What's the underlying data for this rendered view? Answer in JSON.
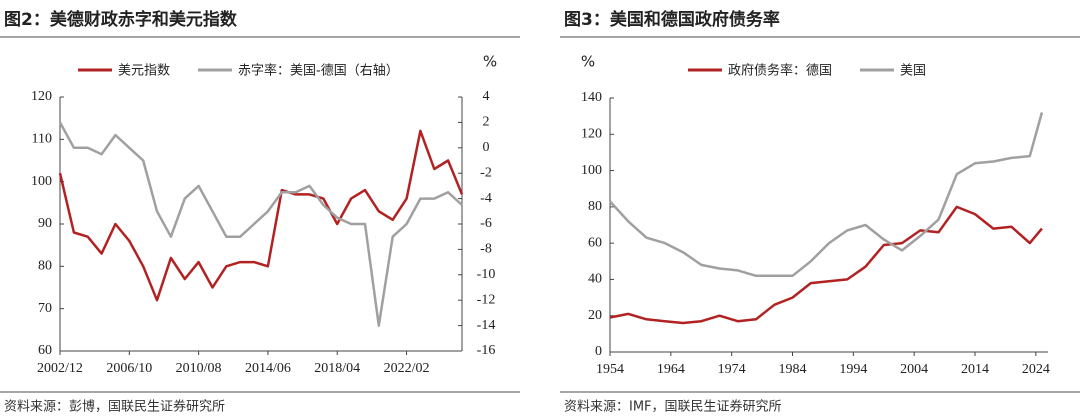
{
  "chart_data": [
    {
      "type": "line",
      "title": "图2：美德财政赤字和美元指数",
      "source": "资料来源：彭博，国联民生证券研究所",
      "y2_label": "%",
      "categories": [
        "2002/12",
        null,
        null,
        null,
        null,
        "2006/10",
        null,
        null,
        null,
        null,
        "2010/08",
        null,
        null,
        null,
        null,
        "2014/06",
        null,
        null,
        null,
        null,
        "2018/04",
        null,
        null,
        null,
        null,
        "2022/02",
        null,
        null,
        null,
        null
      ],
      "series": [
        {
          "name": "美元指数",
          "color": "#b22222",
          "values": [
            102,
            88,
            87,
            83,
            90,
            86,
            80,
            72,
            82,
            77,
            81,
            75,
            80,
            81,
            81,
            80,
            98,
            97,
            97,
            96,
            90,
            96,
            98,
            93,
            91,
            96,
            112,
            103,
            105,
            97
          ]
        },
        {
          "name": "赤字率：美国-德国（右轴）",
          "color": "#a0a0a0",
          "axis": "y2",
          "values": [
            2,
            0,
            0,
            -0.5,
            1,
            0,
            -1,
            -5,
            -7,
            -4,
            -3,
            -5,
            -7,
            -7,
            -6,
            -5,
            -3.5,
            -3.5,
            -3,
            -4.5,
            -5.5,
            -6,
            -6,
            -14,
            -7,
            -6,
            -4,
            -4,
            -3.5,
            -4.5
          ]
        }
      ],
      "ylim": [
        60,
        120
      ],
      "yticks": [
        60,
        70,
        80,
        90,
        100,
        110,
        120
      ],
      "y2lim": [
        -16,
        4
      ],
      "y2ticks": [
        -16,
        -14,
        -12,
        -10,
        -8,
        -6,
        -4,
        -2,
        0,
        2,
        4
      ]
    },
    {
      "type": "line",
      "title": "图3：美国和德国政府债务率",
      "source": "资料来源：IMF，国联民生证券研究所",
      "y_label": "%",
      "x": [
        1954,
        1957,
        1960,
        1963,
        1966,
        1969,
        1972,
        1975,
        1978,
        1981,
        1984,
        1987,
        1990,
        1993,
        1996,
        1999,
        2002,
        2005,
        2008,
        2011,
        2014,
        2017,
        2020,
        2023,
        2025
      ],
      "series": [
        {
          "name": "政府债务率：德国",
          "color": "#b22222",
          "values": [
            19,
            21,
            18,
            17,
            16,
            17,
            20,
            17,
            18,
            26,
            30,
            38,
            39,
            40,
            47,
            59,
            60,
            67,
            66,
            80,
            76,
            68,
            69,
            60,
            68
          ]
        },
        {
          "name": "美国",
          "color": "#a0a0a0",
          "values": [
            83,
            72,
            63,
            60,
            55,
            48,
            46,
            45,
            42,
            42,
            42,
            50,
            60,
            67,
            70,
            62,
            56,
            64,
            73,
            98,
            104,
            105,
            107,
            108,
            132
          ]
        }
      ],
      "xlim": [
        1954,
        2026
      ],
      "xticks": [
        1954,
        1964,
        1974,
        1984,
        1994,
        2004,
        2014,
        2024
      ],
      "ylim": [
        0,
        140
      ],
      "yticks": [
        0,
        20,
        40,
        60,
        80,
        100,
        120,
        140
      ]
    }
  ]
}
